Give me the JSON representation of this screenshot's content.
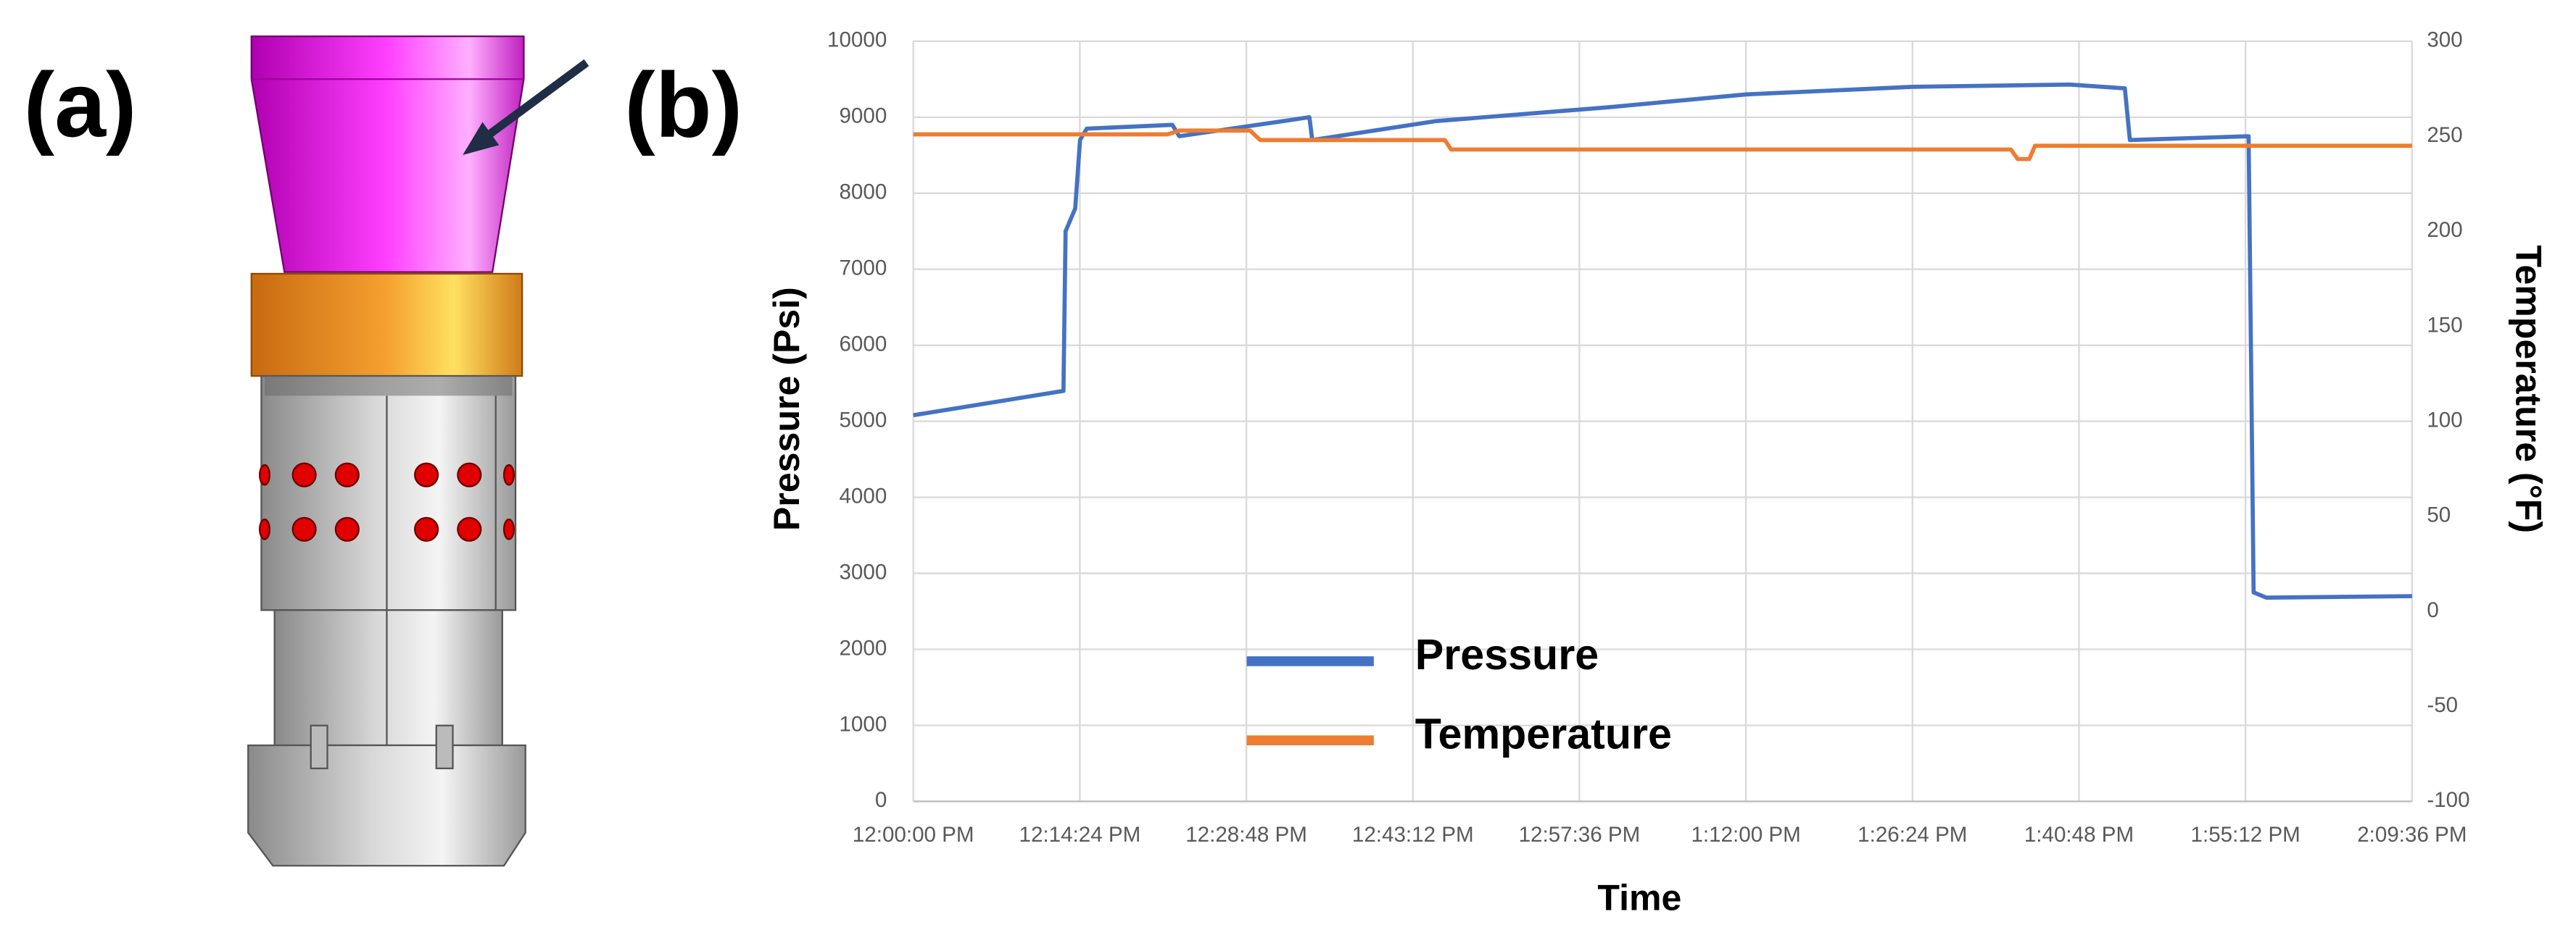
{
  "panel_labels": [
    "(a)",
    "(b)"
  ],
  "chart_data": {
    "type": "line",
    "xlabel": "Time",
    "ylabel": "Pressure (Psi)",
    "y2label": "Temperature (°F)",
    "xlim": [
      "12:00:00 PM",
      "2:09:36 PM"
    ],
    "xticks": [
      "12:00:00 PM",
      "12:14:24 PM",
      "12:28:48 PM",
      "12:43:12 PM",
      "12:57:36 PM",
      "1:12:00 PM",
      "1:26:24 PM",
      "1:40:48 PM",
      "1:55:12 PM",
      "2:09:36 PM"
    ],
    "ylim": [
      0,
      10000
    ],
    "yticks": [
      0,
      1000,
      2000,
      3000,
      4000,
      5000,
      6000,
      7000,
      8000,
      9000,
      10000
    ],
    "y2lim": [
      -100,
      300
    ],
    "y2ticks": [
      -100,
      -50,
      0,
      50,
      100,
      150,
      200,
      250,
      300
    ],
    "grid": true,
    "legend": "lower left",
    "series": [
      {
        "name": "Pressure",
        "color": "#4472c4",
        "x": [
          "12:00:00 PM",
          "12:12:59 PM",
          "12:13:10 PM",
          "12:14:00 PM",
          "12:14:25 PM",
          "12:15:00 PM",
          "12:22:24 PM",
          "12:23:00 PM",
          "12:34:15 PM",
          "12:34:30 PM",
          "12:45:15 PM",
          "1:00:00 PM",
          "1:12:00 PM",
          "1:26:24 PM",
          "1:40:00 PM",
          "1:44:46 PM",
          "1:45:12 PM",
          "1:55:28 PM",
          "1:55:54 PM",
          "1:57:00 PM",
          "2:09:36 PM"
        ],
        "values": [
          5080,
          5400,
          7500,
          7800,
          8700,
          8850,
          8900,
          8750,
          9000,
          8700,
          8950,
          9130,
          9300,
          9400,
          9430,
          9380,
          8700,
          8750,
          2750,
          2680,
          2700
        ]
      },
      {
        "name": "Temperature",
        "color": "#ed7d31",
        "axis": "y2",
        "x": [
          "12:00:00 PM",
          "12:22:00 PM",
          "12:23:00 PM",
          "12:29:07 PM",
          "12:30:00 PM",
          "12:45:58 PM",
          "12:46:30 PM",
          "1:34:55 PM",
          "1:35:30 PM",
          "1:36:30 PM",
          "1:37:00 PM",
          "2:09:36 PM"
        ],
        "values": [
          251,
          251,
          253,
          253,
          248,
          248,
          243,
          243,
          238,
          238,
          245,
          245
        ]
      }
    ]
  }
}
